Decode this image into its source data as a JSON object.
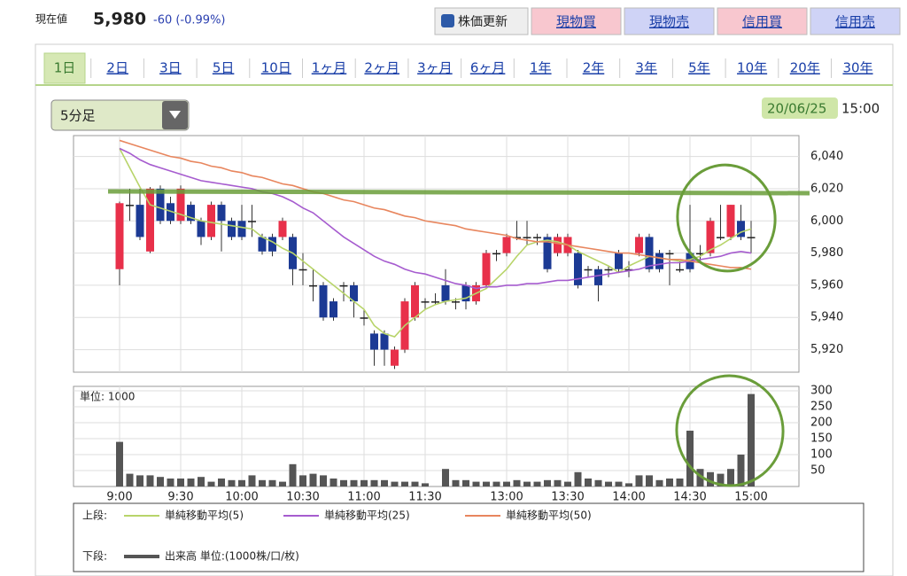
{
  "header": {
    "label": "現在値",
    "price": "5,980",
    "change": "-60 (-0.99%)"
  },
  "buttons": [
    "株価更新",
    "現物買",
    "現物売",
    "信用買",
    "信用売"
  ],
  "tabs": [
    "1日",
    "2日",
    "3日",
    "5日",
    "10日",
    "1ヶ月",
    "2ヶ月",
    "3ヶ月",
    "6ヶ月",
    "1年",
    "2年",
    "3年",
    "5年",
    "10年",
    "20年",
    "30年"
  ],
  "interval": "5分足",
  "date": "20/06/25",
  "time": "15:00",
  "chart_data": [
    {
      "type": "candlestick",
      "legend_title": "上段:",
      "open": [
        5970,
        6010,
        6010,
        5981,
        6020,
        6011,
        6000,
        6010,
        6000,
        5990,
        6010,
        6000,
        6000,
        6000,
        5990,
        5990,
        5990,
        5990,
        5970,
        5960,
        5960,
        5950,
        5960,
        5960,
        5940,
        5930,
        5930,
        5910,
        5920,
        5940,
        5950,
        5950,
        5960,
        5950,
        5960,
        5950,
        5960,
        5980,
        5980,
        5990,
        5990,
        5990,
        5990,
        5980,
        5980,
        5980,
        5970,
        5970,
        5970,
        5980,
        5970,
        5980,
        5990,
        5980,
        5980,
        5970,
        5980,
        5980,
        5980,
        5990,
        5990,
        6000,
        5990
      ],
      "high": [
        6012,
        6020,
        6020,
        6021,
        6022,
        6015,
        6022,
        6012,
        6002,
        6012,
        6012,
        6002,
        6010,
        6010,
        5992,
        5992,
        6002,
        5992,
        5980,
        5970,
        5962,
        5952,
        5962,
        5962,
        5945,
        5932,
        5932,
        5922,
        5952,
        5962,
        5952,
        5955,
        5970,
        5952,
        5962,
        5962,
        5982,
        5982,
        5992,
        6000,
        6000,
        5992,
        5992,
        5992,
        5992,
        5982,
        5972,
        5972,
        5972,
        5982,
        5975,
        5992,
        5992,
        5982,
        5982,
        5975,
        6010,
        5985,
        6002,
        6010,
        6010,
        6010,
        6000
      ],
      "low": [
        5960,
        6000,
        5988,
        5980,
        5998,
        5998,
        5998,
        5998,
        5985,
        5988,
        5981,
        5988,
        5988,
        5990,
        5979,
        5978,
        5988,
        5960,
        5960,
        5950,
        5938,
        5938,
        5950,
        5940,
        5935,
        5910,
        5910,
        5908,
        5918,
        5938,
        5945,
        5948,
        5948,
        5945,
        5945,
        5948,
        5958,
        5975,
        5978,
        5988,
        5985,
        5985,
        5968,
        5978,
        5978,
        5958,
        5965,
        5950,
        5965,
        5968,
        5965,
        5978,
        5968,
        5968,
        5960,
        5968,
        5968,
        5975,
        5978,
        5988,
        5988,
        5988,
        5980
      ],
      "close": [
        6011,
        6010,
        5990,
        6020,
        6000,
        6000,
        6020,
        6000,
        5990,
        6010,
        6000,
        5990,
        5990,
        6000,
        5981,
        5981,
        6000,
        5970,
        5970,
        5960,
        5940,
        5940,
        5960,
        5950,
        5940,
        5920,
        5920,
        5920,
        5950,
        5960,
        5950,
        5950,
        5950,
        5950,
        5950,
        5960,
        5980,
        5980,
        5990,
        5990,
        5990,
        5990,
        5970,
        5990,
        5990,
        5960,
        5970,
        5960,
        5970,
        5970,
        5970,
        5990,
        5970,
        5970,
        5980,
        5970,
        5970,
        5980,
        6000,
        5990,
        6010,
        5990,
        5990
      ],
      "up_color": "#e8304a",
      "down_color": "#1c3a94",
      "ylim": [
        5906,
        6053
      ],
      "yticks": [
        {
          "value": 6040,
          "label": "6,040"
        },
        {
          "value": 6020,
          "label": "6,020"
        },
        {
          "value": 6000,
          "label": "6,000"
        },
        {
          "value": 5980,
          "label": "5,980"
        },
        {
          "value": 5960,
          "label": "5,960"
        },
        {
          "value": 5940,
          "label": "5,940"
        },
        {
          "value": 5920,
          "label": "5,920"
        }
      ],
      "grid": true,
      "series": [
        {
          "name": "単純移動平均(5)",
          "color": "#b8d46a",
          "values": [
            6045,
            6033,
            6021,
            6010,
            6008,
            6006,
            6004,
            6002,
            6000,
            5999,
            5998,
            5997,
            5996,
            5995,
            5990,
            5987,
            5983,
            5980,
            5975,
            5970,
            5965,
            5960,
            5955,
            5950,
            5945,
            5935,
            5930,
            5928,
            5935,
            5940,
            5945,
            5948,
            5950,
            5951,
            5952,
            5955,
            5958,
            5964,
            5970,
            5978,
            5985,
            5987,
            5988,
            5987,
            5985,
            5981,
            5978,
            5975,
            5972,
            5968,
            5972,
            5975,
            5978,
            5977,
            5976,
            5975,
            5976,
            5978,
            5982,
            5985,
            5989,
            5993,
            5995
          ]
        },
        {
          "name": "単純移動平均(25)",
          "color": "#a65ccf",
          "values": [
            6045,
            6042,
            6038,
            6035,
            6033,
            6031,
            6029,
            6027,
            6025,
            6024,
            6023,
            6022,
            6021,
            6020,
            6018,
            6017,
            6015,
            6012,
            6008,
            6005,
            6000,
            5995,
            5990,
            5986,
            5982,
            5978,
            5975,
            5973,
            5970,
            5968,
            5967,
            5965,
            5963,
            5961,
            5960,
            5958,
            5959,
            5959,
            5960,
            5960,
            5961,
            5961,
            5962,
            5963,
            5963,
            5964,
            5965,
            5966,
            5967,
            5968,
            5969,
            5970,
            5972,
            5973,
            5974,
            5974,
            5975,
            5976,
            5977,
            5978,
            5980,
            5981,
            5980
          ]
        },
        {
          "name": "単純移動平均(50)",
          "color": "#e8865e",
          "values": [
            6050,
            6048,
            6046,
            6044,
            6042,
            6040,
            6039,
            6037,
            6036,
            6034,
            6033,
            6031,
            6030,
            6028,
            6027,
            6025,
            6023,
            6022,
            6020,
            6018,
            6017,
            6015,
            6013,
            6012,
            6010,
            6008,
            6007,
            6005,
            6003,
            6002,
            6000,
            5999,
            5998,
            5997,
            5995,
            5994,
            5993,
            5992,
            5991,
            5989,
            5988,
            5987,
            5987,
            5986,
            5985,
            5984,
            5983,
            5982,
            5981,
            5980,
            5980,
            5979,
            5978,
            5977,
            5976,
            5976,
            5975,
            5974,
            5973,
            5972,
            5971,
            5971,
            5970
          ]
        }
      ]
    },
    {
      "type": "bar",
      "legend_title": "下段:",
      "annotation": "単位: 1000",
      "categories": [
        "9:00",
        null,
        null,
        null,
        null,
        null,
        "9:30",
        null,
        null,
        null,
        null,
        null,
        "10:00",
        null,
        null,
        null,
        null,
        null,
        "10:30",
        null,
        null,
        null,
        null,
        null,
        "11:00",
        null,
        null,
        null,
        null,
        null,
        "11:30",
        null,
        null,
        null,
        null,
        null,
        null,
        null,
        "13:00",
        null,
        null,
        null,
        null,
        null,
        "13:30",
        null,
        null,
        null,
        null,
        null,
        "14:00",
        null,
        null,
        null,
        null,
        null,
        "14:30",
        null,
        null,
        null,
        null,
        null,
        "15:00"
      ],
      "series": [
        {
          "name": "出来高 単位:(1000株/口/枚)",
          "color": "#555555",
          "values": [
            140,
            40,
            35,
            35,
            30,
            25,
            25,
            25,
            30,
            15,
            25,
            20,
            20,
            35,
            20,
            20,
            15,
            70,
            35,
            40,
            35,
            25,
            20,
            20,
            20,
            20,
            20,
            15,
            15,
            15,
            10,
            0,
            55,
            20,
            20,
            15,
            15,
            15,
            15,
            20,
            15,
            15,
            20,
            20,
            15,
            45,
            25,
            20,
            15,
            15,
            10,
            35,
            35,
            20,
            25,
            25,
            175,
            55,
            45,
            40,
            55,
            100,
            290
          ]
        }
      ],
      "ylim": [
        0,
        314
      ],
      "yticks": [
        50,
        100,
        150,
        200,
        250,
        300
      ],
      "grid": true
    }
  ]
}
